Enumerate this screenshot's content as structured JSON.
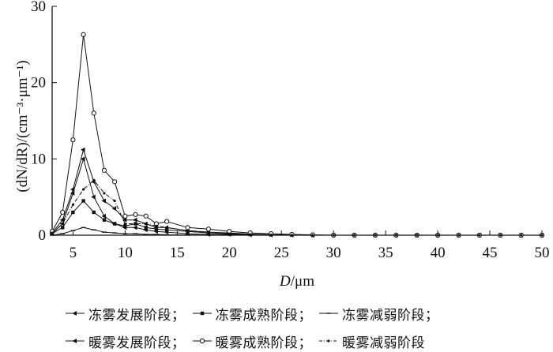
{
  "chart_data": {
    "type": "line",
    "xlabel_italic": "D",
    "xlabel_unit": "/μm",
    "ylabel": "(dN/dR)/(cm⁻³·μm⁻¹)",
    "xlim": [
      3,
      50
    ],
    "ylim": [
      0,
      30
    ],
    "xticks": [
      5,
      10,
      15,
      20,
      25,
      30,
      35,
      40,
      45,
      50
    ],
    "yticks": [
      0,
      10,
      20,
      30
    ],
    "grid": false,
    "legend_position": "bottom",
    "x": [
      3,
      4,
      5,
      6,
      7,
      8,
      9,
      10,
      11,
      12,
      13,
      14,
      16,
      18,
      20,
      22,
      24,
      26,
      28,
      30,
      32,
      34,
      36,
      38,
      40,
      42,
      44,
      46,
      48,
      50
    ],
    "series": [
      {
        "name": "冻雾发展阶段",
        "marker": "left-triangle",
        "style": "solid",
        "values": [
          0.2,
          1.5,
          5.5,
          10.0,
          5.0,
          2.5,
          1.5,
          1.0,
          1.0,
          0.7,
          0.5,
          0.4,
          0.2,
          0.1,
          0.1,
          0.05,
          0.02,
          0.01,
          0,
          0,
          0,
          0,
          0,
          0,
          0,
          0,
          0,
          0,
          0,
          0
        ]
      },
      {
        "name": "冻雾成熟阶段",
        "marker": "square",
        "style": "solid",
        "values": [
          0.2,
          1.0,
          3.0,
          4.5,
          3.0,
          2.0,
          1.5,
          1.2,
          1.5,
          1.0,
          0.8,
          0.7,
          0.5,
          0.3,
          0.2,
          0.1,
          0.05,
          0.02,
          0,
          0,
          0,
          0,
          0,
          0,
          0,
          0,
          0,
          0,
          0,
          0
        ]
      },
      {
        "name": "冻雾减弱阶段",
        "marker": "dash",
        "style": "solid",
        "values": [
          0.0,
          0.2,
          0.6,
          1.0,
          0.7,
          0.4,
          0.3,
          0.2,
          0.2,
          0.1,
          0.1,
          0.05,
          0.02,
          0.01,
          0,
          0,
          0,
          0,
          0,
          0,
          0,
          0,
          0,
          0,
          0,
          0,
          0,
          0,
          0,
          0
        ]
      },
      {
        "name": "暖雾发展阶段",
        "marker": "left-triangle",
        "style": "solid",
        "values": [
          0.3,
          2.0,
          6.0,
          11.2,
          7.0,
          4.5,
          3.5,
          2.0,
          2.0,
          1.5,
          1.0,
          1.0,
          0.6,
          0.4,
          0.3,
          0.15,
          0.05,
          0.02,
          0,
          0,
          0,
          0,
          0,
          0,
          0,
          0,
          0,
          0,
          0,
          0
        ]
      },
      {
        "name": "暖雾成熟阶段",
        "marker": "circle",
        "style": "solid",
        "values": [
          0.5,
          3.0,
          12.5,
          26.3,
          16.0,
          8.5,
          7.0,
          2.5,
          2.7,
          2.5,
          1.5,
          1.8,
          1.0,
          0.8,
          0.5,
          0.3,
          0.2,
          0.1,
          0.05,
          0,
          0,
          0,
          0,
          0,
          0,
          0,
          0,
          0,
          0,
          0
        ]
      },
      {
        "name": "暖雾减弱阶段",
        "marker": "dot",
        "style": "dashdot",
        "values": [
          0.3,
          1.5,
          4.0,
          6.0,
          7.2,
          5.5,
          4.5,
          1.5,
          1.5,
          1.5,
          1.2,
          1.0,
          0.6,
          0.4,
          0.2,
          0.1,
          0.05,
          0.02,
          0,
          0,
          0,
          0,
          0,
          0,
          0,
          0,
          0,
          0,
          0,
          0
        ]
      }
    ]
  },
  "legend": {
    "row1": [
      {
        "label": "冻雾发展阶段",
        "marker": "left-triangle",
        "sep": "；"
      },
      {
        "label": "冻雾成熟阶段",
        "marker": "square",
        "sep": "；"
      },
      {
        "label": "冻雾减弱阶段",
        "marker": "dash",
        "sep": "；"
      }
    ],
    "row2": [
      {
        "label": "暖雾发展阶段",
        "marker": "left-triangle",
        "sep": "；"
      },
      {
        "label": "暖雾成熟阶段",
        "marker": "circle",
        "sep": "；"
      },
      {
        "label": "暖雾减弱阶段",
        "marker": "dot",
        "sep": ""
      }
    ]
  }
}
